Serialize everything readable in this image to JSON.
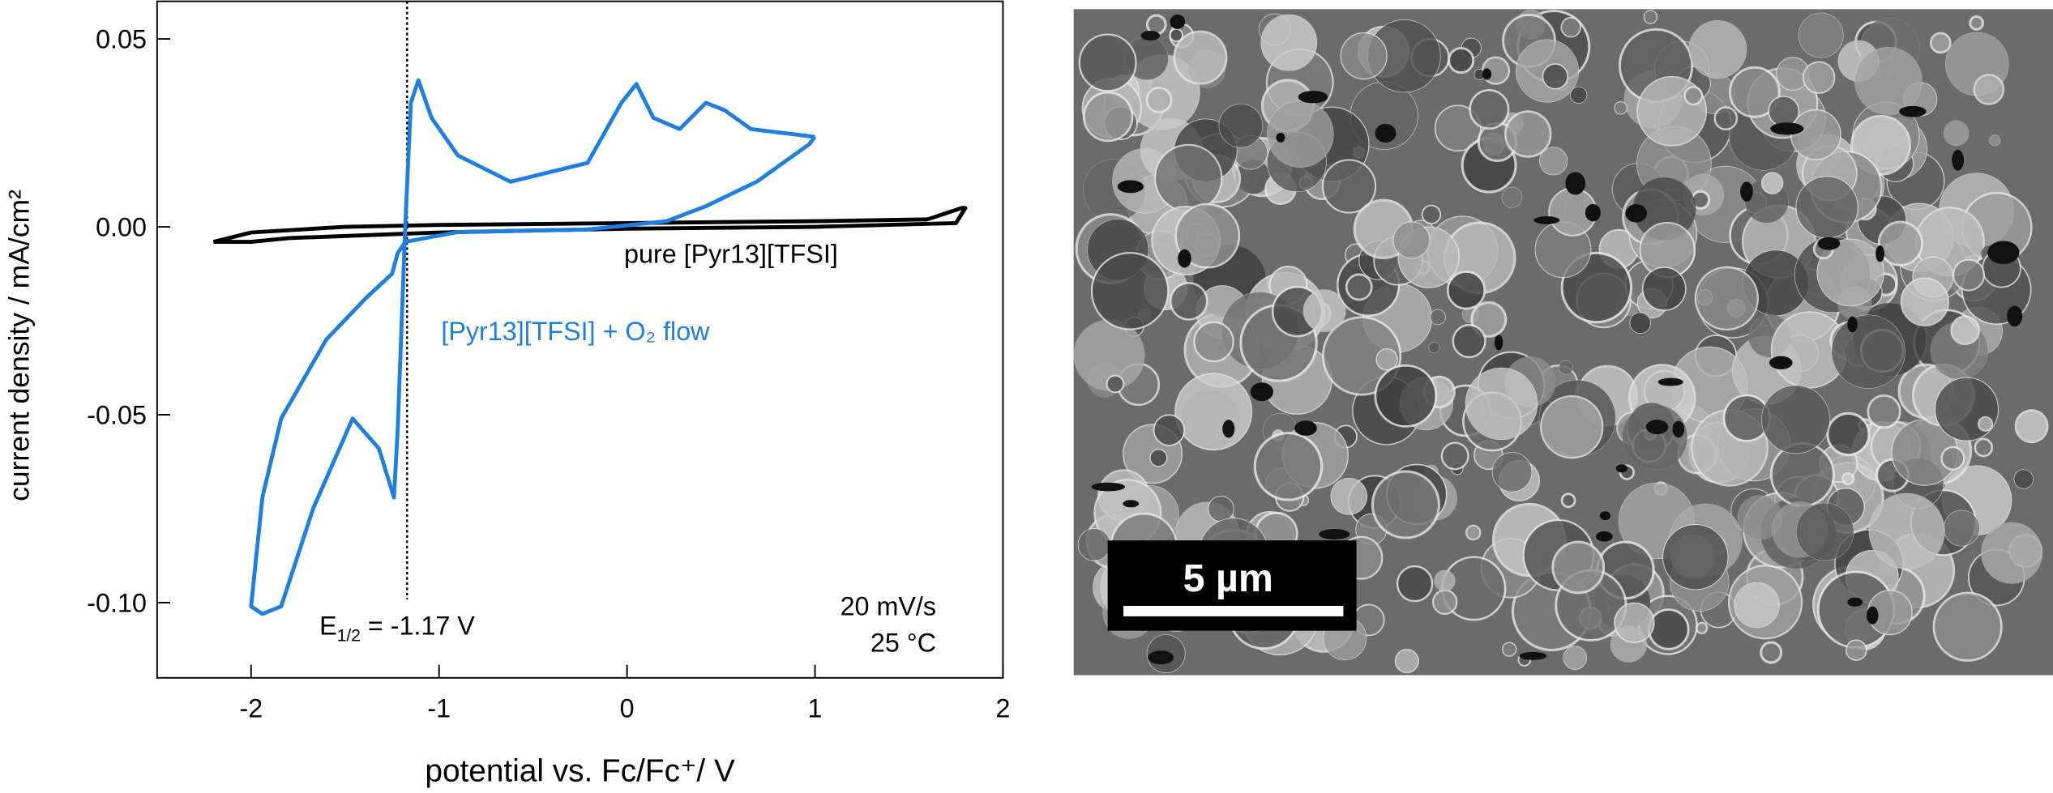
{
  "chart_data": {
    "type": "line",
    "xlabel": "potential vs. Fc/Fc⁺/ V",
    "ylabel": "current density / mA/cm²",
    "xlim": [
      -2.5,
      2
    ],
    "ylim": [
      -0.12,
      0.06
    ],
    "xticks": [
      -2,
      -1,
      0,
      1,
      2
    ],
    "yticks": [
      0.05,
      {
        "value": 0,
        "label": "0.00"
      },
      -0.05,
      {
        "value": -0.1,
        "label": "-0.10"
      }
    ],
    "series": [
      {
        "name": "pure [Pyr13][TFSI]",
        "color": "#000000",
        "x": [
          -2.2,
          -2.0,
          -1.5,
          -1.0,
          0,
          1.0,
          1.6,
          1.78,
          1.8,
          1.75,
          1.0,
          0,
          -1.0,
          -1.8,
          -2.0,
          -2.2
        ],
        "y": [
          -0.004,
          -0.0015,
          0.0,
          0.0005,
          0.001,
          0.0015,
          0.002,
          0.005,
          0.005,
          0.001,
          0.0,
          -0.0005,
          -0.0015,
          -0.003,
          -0.004,
          -0.004
        ]
      },
      {
        "name": "[Pyr13][TFSI] + O₂ flow",
        "color": "#1f7fe0",
        "x": [
          1.0,
          0.97,
          0.69,
          0.42,
          0.21,
          -0.21,
          -0.9,
          -1.18,
          -1.22,
          -1.25,
          -1.39,
          -1.6,
          -1.84,
          -1.94,
          -2.0,
          -1.94,
          -1.84,
          -1.67,
          -1.46,
          -1.32,
          -1.24,
          -1.22,
          -1.18,
          -1.15,
          -1.11,
          -1.04,
          -0.9,
          -0.62,
          -0.21,
          -0.03,
          0.05,
          0.14,
          0.28,
          0.42,
          0.52,
          0.66,
          0.99,
          1.0
        ],
        "y": [
          0.024,
          0.022,
          0.012,
          0.0055,
          0.0015,
          -0.0007,
          -0.0014,
          -0.004,
          -0.007,
          -0.0125,
          -0.019,
          -0.03,
          -0.051,
          -0.072,
          -0.101,
          -0.103,
          -0.101,
          -0.075,
          -0.051,
          -0.059,
          -0.072,
          -0.054,
          0.0,
          0.033,
          0.039,
          0.029,
          0.019,
          0.012,
          0.017,
          0.033,
          0.038,
          0.029,
          0.026,
          0.033,
          0.031,
          0.026,
          0.024,
          0.024
        ]
      }
    ],
    "vline": -1.17,
    "vline_label": {
      "main": "E",
      "sub": "1/2",
      "rest": " = -1.17 V"
    },
    "annotations": [
      "20 mV/s",
      "25 °C"
    ]
  },
  "image": {
    "scale_bar": "5 µm"
  }
}
